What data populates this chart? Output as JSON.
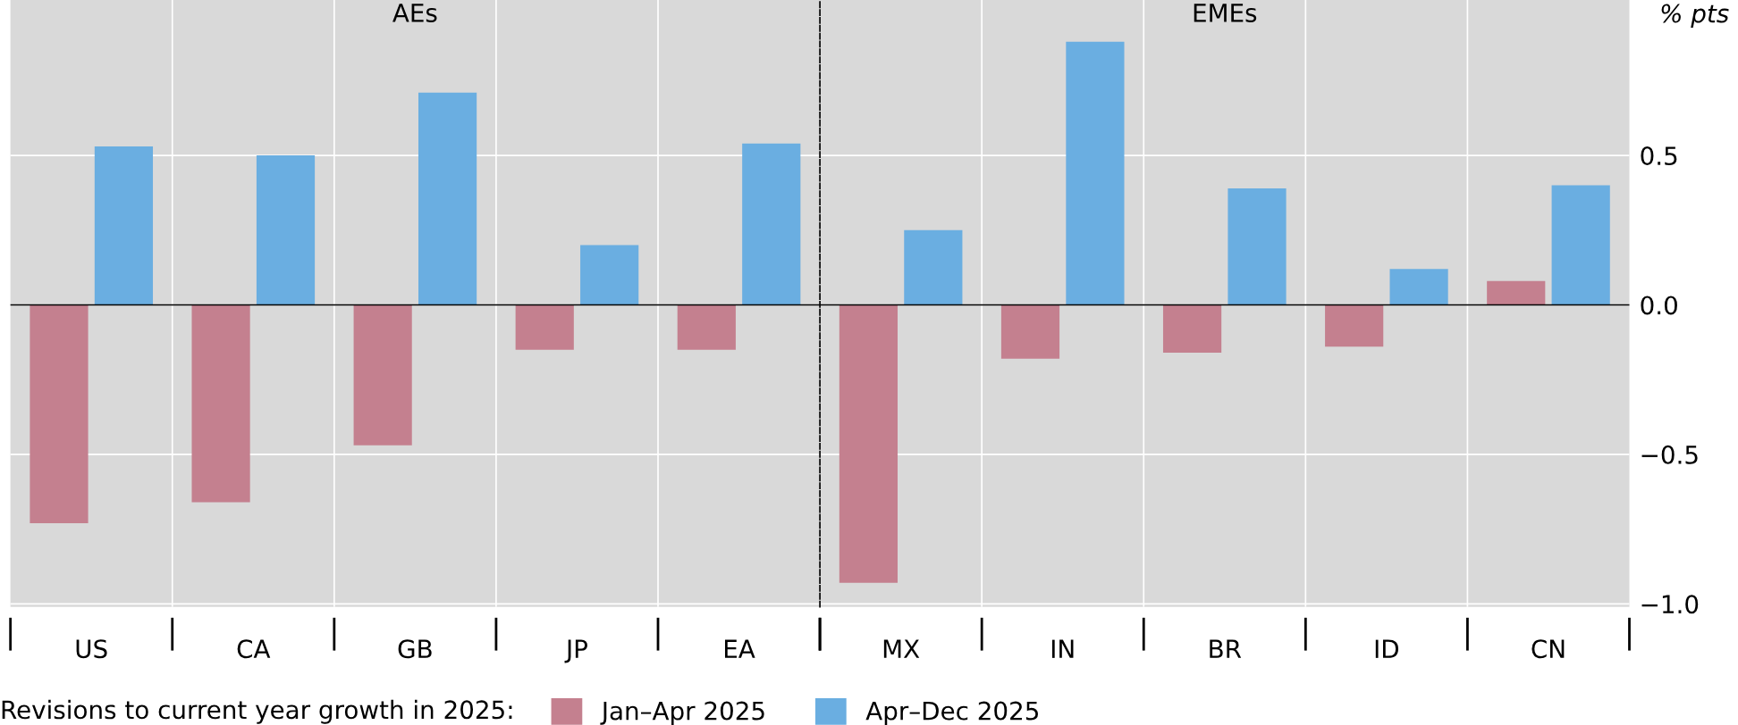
{
  "chart_data": [
    {
      "type": "bar",
      "title": "AEs",
      "categories": [
        "US",
        "CA",
        "GB",
        "JP",
        "EA"
      ],
      "series": [
        {
          "name": "Jan–Apr 2025",
          "color": "#c4808f",
          "values": [
            -0.73,
            -0.66,
            -0.47,
            -0.15,
            -0.15
          ]
        },
        {
          "name": "Apr–Dec 2025",
          "color": "#6aaee1",
          "values": [
            0.53,
            0.5,
            0.71,
            0.2,
            0.54
          ]
        }
      ],
      "ylim": [
        -1.01,
        1.02
      ],
      "yticks": [
        -1.0,
        -0.5,
        0.0,
        0.5
      ],
      "tick_labels": "x",
      "legend": "bottom",
      "grid": true
    },
    {
      "type": "bar",
      "title": "EMEs",
      "categories": [
        "MX",
        "IN",
        "BR",
        "ID",
        "CN"
      ],
      "series": [
        {
          "name": "Jan–Apr 2025",
          "color": "#c4808f",
          "values": [
            -0.93,
            -0.18,
            -0.16,
            -0.14,
            0.08
          ]
        },
        {
          "name": "Apr–Dec 2025",
          "color": "#6aaee1",
          "values": [
            0.25,
            0.88,
            0.39,
            0.12,
            0.4
          ]
        }
      ],
      "ylabel": "% pts",
      "legend_title": "Revisions to current year growth in 2025:",
      "legend": "bottom",
      "ylim": [
        -1.01,
        1.02
      ],
      "yticks": [
        {
          "value": -1.0,
          "label": "−1.0"
        },
        {
          "value": -0.5,
          "label": "−0.5"
        },
        {
          "value": 0.0,
          "label": "0.0"
        },
        {
          "value": 0.5,
          "label": "0.5"
        }
      ],
      "grid": true
    }
  ]
}
